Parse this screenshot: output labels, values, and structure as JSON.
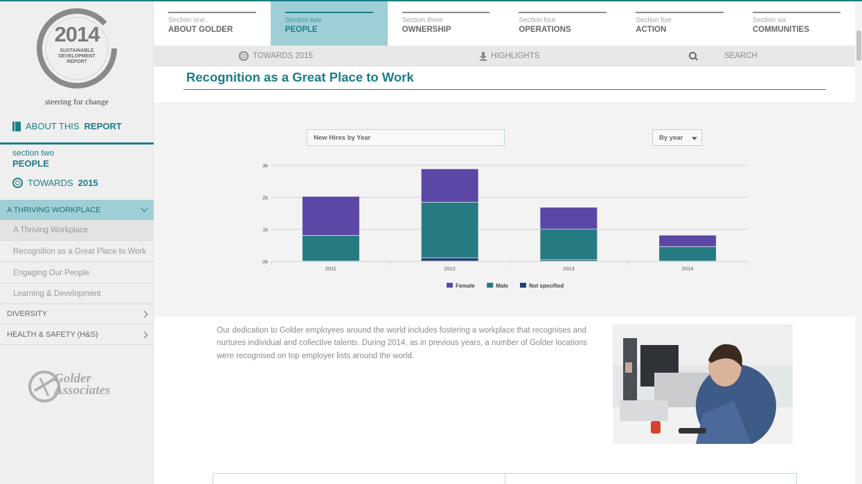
{
  "logo": {
    "year": "2014",
    "lines": [
      "SUSTAINABLE",
      "DEVELOPMENT",
      "REPORT"
    ],
    "tagline": "steering for change"
  },
  "sidebar": {
    "about_prefix": "ABOUT THIS",
    "about_bold": "REPORT",
    "section_small": "section two",
    "section_big": "PEOPLE",
    "towards_prefix": "TOWARDS",
    "towards_bold": "2015",
    "active_group": "A THRIVING WORKPLACE",
    "sub_items": [
      "A Thriving Workplace",
      "Recognition as a Great Place to Work",
      "Engaging Our People",
      "Learning & Development"
    ],
    "categories": [
      "DIVERSITY",
      "HEALTH & SAFETY (H&S)"
    ],
    "golder_line1": "Golder",
    "golder_line2": "Associates"
  },
  "topnav": {
    "tabs": [
      {
        "small": "Section one",
        "big": "ABOUT GOLDER"
      },
      {
        "small": "Section two",
        "big": "PEOPLE"
      },
      {
        "small": "Section three",
        "big": "OWNERSHIP"
      },
      {
        "small": "Section four",
        "big": "OPERATIONS"
      },
      {
        "small": "Section five",
        "big": "ACTION"
      },
      {
        "small": "Section six",
        "big": "COMMUNITIES"
      }
    ],
    "active_index": 1
  },
  "subbar": {
    "towards": "TOWARDS 2015",
    "highlights": "HIGHLIGHTS",
    "search": "SEARCH"
  },
  "main": {
    "title": "Recognition as a Great Place to Work",
    "chart_field": "New Hires by Year",
    "select_value": "By year",
    "body": "Our dedication to Golder employees around the world includes fostering a workplace that recognises and nurtures individual and collective talents. During 2014, as in previous years, a number of Golder locations were recognised on top employer lists around the world."
  },
  "colors": {
    "accent": "#1b7d86",
    "active_tab": "#9fcfd6",
    "female": "#5b47a5",
    "male": "#267b83",
    "not_specified": "#1f3f6e"
  },
  "chart_data": {
    "type": "bar",
    "stacked": true,
    "categories": [
      "2011",
      "2012",
      "2013",
      "2014"
    ],
    "series": [
      {
        "name": "Not specified",
        "values": [
          0,
          100,
          40,
          0
        ]
      },
      {
        "name": "Male",
        "values": [
          800,
          1740,
          960,
          450
        ]
      },
      {
        "name": "Female",
        "values": [
          1220,
          1040,
          680,
          360
        ]
      }
    ],
    "y_ticks": [
      "0k",
      "1k",
      "2k",
      "3k"
    ],
    "ylim": [
      0,
      3000
    ],
    "grid": true,
    "legend_placement": "bottom",
    "legend": [
      "Female",
      "Male",
      "Not specified"
    ]
  }
}
